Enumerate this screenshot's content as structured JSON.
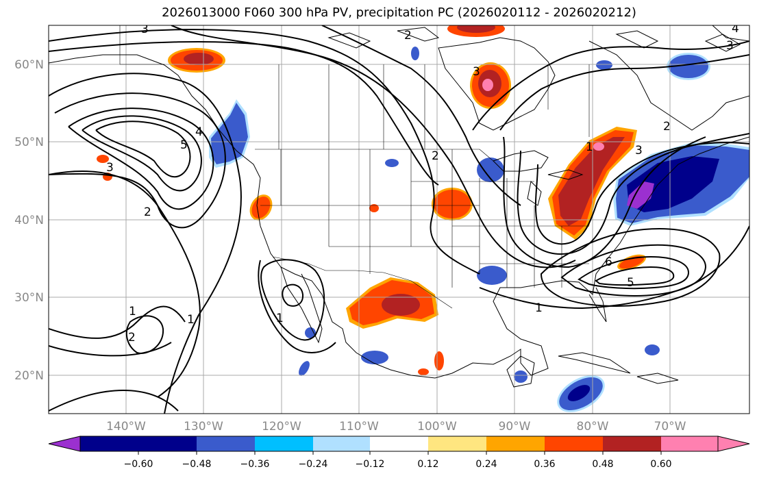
{
  "title": "2026013000 F060 300 hPa PV, precipitation PC (2026020112 - 2026020212)",
  "lat_labels": [
    "60°N",
    "50°N",
    "40°N",
    "30°N",
    "20°N"
  ],
  "lon_labels": [
    "140°W",
    "130°W",
    "120°W",
    "110°W",
    "100°W",
    "90°W",
    "80°W",
    "70°W"
  ],
  "colorbar": {
    "ticks": [
      "−0.60",
      "−0.48",
      "−0.36",
      "−0.24",
      "−0.12",
      "0.12",
      "0.24",
      "0.36",
      "0.48",
      "0.60"
    ],
    "colors": [
      "#9b30d0",
      "#00008b",
      "#3a5bcc",
      "#00bfff",
      "#b0e0ff",
      "#ffffff",
      "#ffe680",
      "#ffa500",
      "#ff4500",
      "#b22222",
      "#ff80b0"
    ]
  },
  "contour_labels": [
    "1",
    "2",
    "3",
    "4",
    "5",
    "6"
  ],
  "colors": {
    "grid": "#a9a9a9",
    "contour": "#000000",
    "axis_text": "#888888"
  }
}
